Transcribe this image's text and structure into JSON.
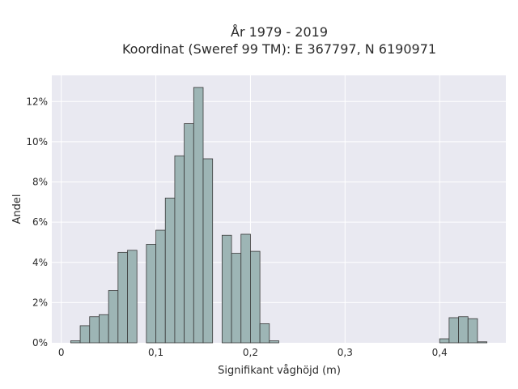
{
  "chart_data": {
    "type": "bar",
    "title_line1": "År 1979 - 2019",
    "title_line2": "Koordinat (Sweref 99 TM): E 367797, N 6190971",
    "xlabel": "Signifikant våghöjd (m)",
    "ylabel": "Andel",
    "bin_width": 0.01,
    "xlim": [
      -0.01,
      0.47
    ],
    "ylim": [
      0,
      13.3
    ],
    "x_ticks": [
      {
        "value": 0,
        "label": "0"
      },
      {
        "value": 0.1,
        "label": "0,1"
      },
      {
        "value": 0.2,
        "label": "0,2"
      },
      {
        "value": 0.3,
        "label": "0,3"
      },
      {
        "value": 0.4,
        "label": "0,4"
      }
    ],
    "y_ticks": [
      {
        "value": 0,
        "label": "0%"
      },
      {
        "value": 2,
        "label": "2%"
      },
      {
        "value": 4,
        "label": "4%"
      },
      {
        "value": 6,
        "label": "6%"
      },
      {
        "value": 8,
        "label": "8%"
      },
      {
        "value": 10,
        "label": "10%"
      },
      {
        "value": 12,
        "label": "12%"
      }
    ],
    "bins": [
      {
        "x": 0.02,
        "y": 0.1
      },
      {
        "x": 0.03,
        "y": 0.85
      },
      {
        "x": 0.04,
        "y": 1.3
      },
      {
        "x": 0.05,
        "y": 1.4
      },
      {
        "x": 0.06,
        "y": 2.6
      },
      {
        "x": 0.07,
        "y": 4.5
      },
      {
        "x": 0.08,
        "y": 4.6
      },
      {
        "x": 0.1,
        "y": 4.9
      },
      {
        "x": 0.11,
        "y": 5.6
      },
      {
        "x": 0.12,
        "y": 7.2
      },
      {
        "x": 0.13,
        "y": 9.3
      },
      {
        "x": 0.14,
        "y": 10.9
      },
      {
        "x": 0.15,
        "y": 12.7
      },
      {
        "x": 0.16,
        "y": 9.15
      },
      {
        "x": 0.18,
        "y": 5.35
      },
      {
        "x": 0.19,
        "y": 4.45
      },
      {
        "x": 0.2,
        "y": 5.4
      },
      {
        "x": 0.21,
        "y": 4.55
      },
      {
        "x": 0.22,
        "y": 0.95
      },
      {
        "x": 0.23,
        "y": 0.1
      },
      {
        "x": 0.41,
        "y": 0.2
      },
      {
        "x": 0.42,
        "y": 1.25
      },
      {
        "x": 0.43,
        "y": 1.3
      },
      {
        "x": 0.44,
        "y": 1.2
      },
      {
        "x": 0.45,
        "y": 0.05
      }
    ],
    "grid": true,
    "colors": {
      "bar_fill": "#9db5b5",
      "bar_stroke": "#3a3a3a",
      "plot_bg": "#e9e9f1",
      "grid": "#ffffff"
    }
  }
}
